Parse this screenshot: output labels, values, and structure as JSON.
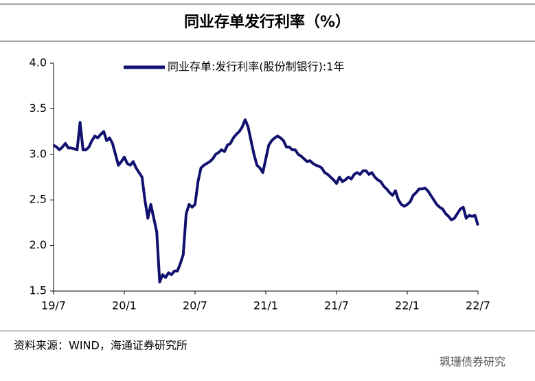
{
  "chart_data": {
    "type": "line",
    "title": "同业存单发行利率（%）",
    "source": "资料来源：WIND，海通证券研究所",
    "watermark": "珮珊债券研究",
    "categories": [
      "19/7",
      null,
      null,
      null,
      null,
      null,
      null,
      null,
      null,
      null,
      null,
      null,
      null,
      null,
      null,
      null,
      null,
      null,
      null,
      null,
      null,
      null,
      null,
      null,
      "20/1",
      null,
      null,
      null,
      null,
      null,
      null,
      null,
      null,
      null,
      null,
      null,
      null,
      null,
      null,
      null,
      null,
      null,
      null,
      null,
      null,
      null,
      null,
      null,
      "20/7",
      null,
      null,
      null,
      null,
      null,
      null,
      null,
      null,
      null,
      null,
      null,
      null,
      null,
      null,
      null,
      null,
      null,
      null,
      null,
      null,
      null,
      null,
      null,
      "21/1",
      null,
      null,
      null,
      null,
      null,
      null,
      null,
      null,
      null,
      null,
      null,
      null,
      null,
      null,
      null,
      null,
      null,
      null,
      null,
      null,
      null,
      null,
      null,
      "21/7",
      null,
      null,
      null,
      null,
      null,
      null,
      null,
      null,
      null,
      null,
      null,
      null,
      null,
      null,
      null,
      null,
      null,
      null,
      null,
      null,
      null,
      null,
      null,
      "22/1",
      null,
      null,
      null,
      null,
      null,
      null,
      null,
      null,
      null,
      null,
      null,
      null,
      null,
      null,
      null,
      null,
      null,
      null,
      null,
      null,
      null,
      null,
      null,
      "22/7"
    ],
    "series": [
      {
        "name": "同业存单:发行利率(股份制银行):1年",
        "color": "#10106e",
        "values": [
          3.1,
          3.08,
          3.05,
          3.08,
          3.12,
          3.07,
          3.07,
          3.06,
          3.05,
          3.35,
          3.05,
          3.05,
          3.08,
          3.15,
          3.2,
          3.18,
          3.22,
          3.25,
          3.15,
          3.18,
          3.12,
          3.0,
          2.88,
          2.92,
          2.97,
          2.9,
          2.88,
          2.92,
          2.85,
          2.8,
          2.75,
          2.5,
          2.3,
          2.45,
          2.3,
          2.15,
          1.6,
          1.68,
          1.65,
          1.7,
          1.68,
          1.72,
          1.72,
          1.8,
          1.9,
          2.35,
          2.45,
          2.42,
          2.45,
          2.7,
          2.85,
          2.88,
          2.9,
          2.92,
          2.95,
          3.0,
          3.02,
          3.05,
          3.03,
          3.1,
          3.12,
          3.18,
          3.22,
          3.25,
          3.3,
          3.38,
          3.3,
          3.15,
          3.0,
          2.88,
          2.85,
          2.8,
          2.95,
          3.1,
          3.15,
          3.18,
          3.2,
          3.18,
          3.15,
          3.08,
          3.08,
          3.05,
          3.05,
          3.0,
          2.98,
          2.95,
          2.92,
          2.93,
          2.9,
          2.88,
          2.87,
          2.85,
          2.8,
          2.78,
          2.75,
          2.72,
          2.68,
          2.75,
          2.7,
          2.72,
          2.75,
          2.73,
          2.78,
          2.8,
          2.78,
          2.82,
          2.82,
          2.78,
          2.8,
          2.75,
          2.72,
          2.7,
          2.65,
          2.62,
          2.58,
          2.55,
          2.6,
          2.5,
          2.45,
          2.43,
          2.45,
          2.48,
          2.55,
          2.58,
          2.62,
          2.62,
          2.63,
          2.6,
          2.55,
          2.5,
          2.45,
          2.42,
          2.4,
          2.35,
          2.32,
          2.28,
          2.3,
          2.35,
          2.4,
          2.42,
          2.3,
          2.33,
          2.32,
          2.33,
          2.22
        ]
      }
    ],
    "ylim": [
      1.5,
      4.0
    ],
    "yticks": [
      1.5,
      {
        "value": 2.0,
        "label": "2.0"
      },
      2.5,
      {
        "value": 3.0,
        "label": "3.0"
      },
      3.5,
      {
        "value": 4.0,
        "label": "4.0"
      }
    ],
    "legend": "top"
  }
}
